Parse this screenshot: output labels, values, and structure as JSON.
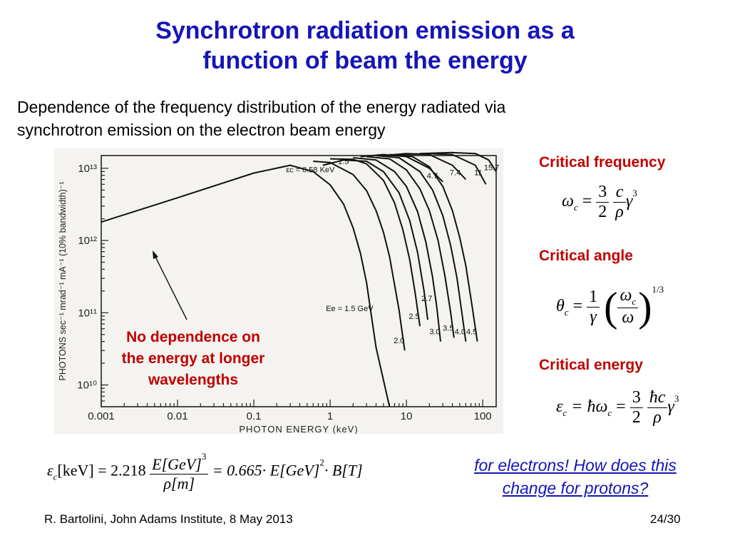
{
  "slide": {
    "title_line1": "Synchrotron radiation emission as a",
    "title_line2": "function of beam the energy",
    "intro_line1": "Dependence of the frequency distribution of the energy radiated via",
    "intro_line2": "synchrotron emission on the electron beam energy",
    "note_line1": "No dependence on",
    "note_line2": "the energy at longer",
    "note_line3": "wavelengths",
    "critical_frequency": "Critical frequency",
    "critical_angle": "Critical angle",
    "critical_energy": "Critical energy",
    "electrons_line1": "for electrons! How does this",
    "electrons_line2": "change for protons?",
    "footer_left": "R. Bartolini, John Adams Institute, 8 May 2013",
    "footer_right": "24/30",
    "colors": {
      "title": "#1515b8",
      "accent_red": "#c00000"
    }
  },
  "formulas": {
    "freq_lhs": "ω",
    "freq_lhs_sub": "c",
    "freq_eq": "=",
    "freq_n1": "3",
    "freq_d1": "2",
    "freq_n2": "c",
    "freq_d2": "ρ",
    "freq_tail": "γ",
    "freq_exp": "3",
    "angle_lhs": "θ",
    "angle_lhs_sub": "c",
    "angle_eq": "=",
    "angle_n1": "1",
    "angle_d1": "γ",
    "angle_n2": "ω",
    "angle_n2_sub": "c",
    "angle_d2": "ω",
    "angle_exp": "1/3",
    "energy_lhs": "ε",
    "energy_lhs_sub": "c",
    "energy_mid": "= ħω",
    "energy_mid_sub": "c",
    "energy_eq": "=",
    "energy_n1": "3",
    "energy_d1": "2",
    "energy_n2": "ħc",
    "energy_d2": "ρ",
    "energy_tail": "γ",
    "energy_exp": "3",
    "main_lhs": "ε",
    "main_lhs_sub": "c",
    "main_unit": "[keV] = 2.218",
    "main_num": "E[GeV]",
    "main_num_exp": "3",
    "main_den": "ρ[m]",
    "main_rhs": "= 0.665· E[GeV]",
    "main_rhs_exp": "2",
    "main_rhs2": "· B[T]"
  },
  "chart_data": {
    "type": "line",
    "xlabel": "PHOTON ENERGY (keV)",
    "ylabel": "PHOTONS sec⁻¹ mrad⁻¹ mA⁻¹ (10% bandwidth)⁻¹",
    "x_scale": "log",
    "y_scale": "log",
    "xlim": [
      0.001,
      150
    ],
    "ylim": [
      5000000000.0,
      15000000000000.0
    ],
    "x_ticks": [
      0.001,
      0.01,
      0.1,
      1,
      10,
      100
    ],
    "x_tick_labels": [
      "0.001",
      "0.01",
      "0.1",
      "1",
      "10",
      "100"
    ],
    "y_ticks": [
      10000000000.0,
      100000000000.0,
      1000000000000.0,
      10000000000000.0
    ],
    "y_tick_labels": [
      "10¹⁰",
      "10¹¹",
      "10¹²",
      "10¹³"
    ],
    "annotation_ec": "εc = 0.58 KeV",
    "annotation_ee": "Ee = 1.5 GeV",
    "series": [
      {
        "name": "1.5",
        "e_gev": 1.5,
        "x": [
          0.001,
          0.01,
          0.1,
          0.3,
          0.6,
          1.0,
          1.5,
          2.0,
          2.5,
          3.0,
          4.0,
          6.0
        ],
        "y": [
          1800000000000.0,
          3900000000000.0,
          8600000000000.0,
          11000000000000.0,
          9000000000000.0,
          5900000000000.0,
          3200000000000.0,
          1500000000000.0,
          660000000000.0,
          260000000000.0,
          33000000000.0,
          5000000000.0
        ]
      },
      {
        "name": "2.0",
        "e_gev": 2.0,
        "x": [
          0.6,
          1.0,
          2.0,
          3.0,
          4.0,
          5.0,
          6.0,
          8.0,
          9.5
        ],
        "y": [
          12500000000000.0,
          12000000000000.0,
          8200000000000.0,
          4900000000000.0,
          2600000000000.0,
          1300000000000.0,
          600000000000.0,
          110000000000.0,
          30000000000.0
        ]
      },
      {
        "name": "2.5",
        "e_gev": 2.5,
        "x": [
          1.0,
          2.0,
          3.0,
          5.0,
          7.0,
          9.0,
          11.0,
          13.0,
          15.0
        ],
        "y": [
          13500000000000.0,
          13300000000000.0,
          11500000000000.0,
          6800000000000.0,
          3300000000000.0,
          1400000000000.0,
          550000000000.0,
          190000000000.0,
          65000000000.0
        ]
      },
      {
        "name": "2.7",
        "e_gev": 2.7,
        "x": [
          0.8,
          1.5,
          3.0,
          5.0,
          8.0,
          11.0,
          14.0,
          17.0,
          19.0
        ],
        "y": [
          11000000000000.0,
          13000000000000.0,
          12500000000000.0,
          9000000000000.0,
          4600000000000.0,
          1900000000000.0,
          680000000000.0,
          200000000000.0,
          80000000000.0
        ]
      },
      {
        "name": "3.0",
        "e_gev": 3.0,
        "x": [
          2.0,
          4.0,
          7.0,
          10.0,
          14.0,
          18.0,
          22.0,
          25.0,
          28.0
        ],
        "y": [
          14000000000000.0,
          13000000000000.0,
          9000000000000.0,
          5600000000000.0,
          2500000000000.0,
          950000000000.0,
          310000000000.0,
          120000000000.0,
          40000000000.0
        ]
      },
      {
        "name": "3.5",
        "e_gev": 3.5,
        "x": [
          3.0,
          6.0,
          10.0,
          15.0,
          20.0,
          26.0,
          32.0,
          38.0,
          42.0
        ],
        "y": [
          14500000000000.0,
          13500000000000.0,
          9500000000000.0,
          5200000000000.0,
          2600000000000.0,
          1000000000000.0,
          320000000000.0,
          100000000000.0,
          45000000000.0
        ]
      },
      {
        "name": "4.0",
        "e_gev": 4.0,
        "x": [
          4.0,
          8.0,
          15.0,
          22.0,
          30.0,
          38.0,
          46.0,
          54.0,
          60.0
        ],
        "y": [
          15000000000000.0,
          14000000000000.0,
          9000000000000.0,
          5000000000000.0,
          2200000000000.0,
          850000000000.0,
          300000000000.0,
          90000000000.0,
          40000000000.0
        ]
      },
      {
        "name": "4.5",
        "e_gev": 4.5,
        "x": [
          6.0,
          12.0,
          20.0,
          30.0,
          40.0,
          50.0,
          60.0,
          72.0,
          85.0
        ],
        "y": [
          15500000000000.0,
          14500000000000.0,
          10500000000000.0,
          5600000000000.0,
          2600000000000.0,
          1100000000000.0,
          450000000000.0,
          130000000000.0,
          40000000000.0
        ]
      },
      {
        "name": "4.7",
        "e_gev": 4.7,
        "x": [
          2.5,
          5.0,
          10.0,
          20.0,
          30.0
        ],
        "y": [
          14500000000000.0,
          15500000000000.0,
          14500000000000.0,
          10000000000000.0,
          6500000000000.0
        ]
      },
      {
        "name": "7.4",
        "e_gev": 7.4,
        "x": [
          5.0,
          10.0,
          20.0,
          40.0,
          60.0
        ],
        "y": [
          15000000000000.0,
          16000000000000.0,
          15500000000000.0,
          11000000000000.0,
          7000000000000.0
        ]
      },
      {
        "name": "11",
        "e_gev": 11.0,
        "x": [
          8.0,
          20.0,
          40.0,
          80.0,
          110.0
        ],
        "y": [
          15500000000000.0,
          16000000000000.0,
          15500000000000.0,
          11000000000000.0,
          6000000000000.0
        ]
      },
      {
        "name": "15.7",
        "e_gev": 15.7,
        "x": [
          15.0,
          40.0,
          80.0,
          120.0,
          150.0
        ],
        "y": [
          16000000000000.0,
          16500000000000.0,
          16000000000000.0,
          13000000000000.0,
          9000000000000.0
        ]
      }
    ]
  }
}
